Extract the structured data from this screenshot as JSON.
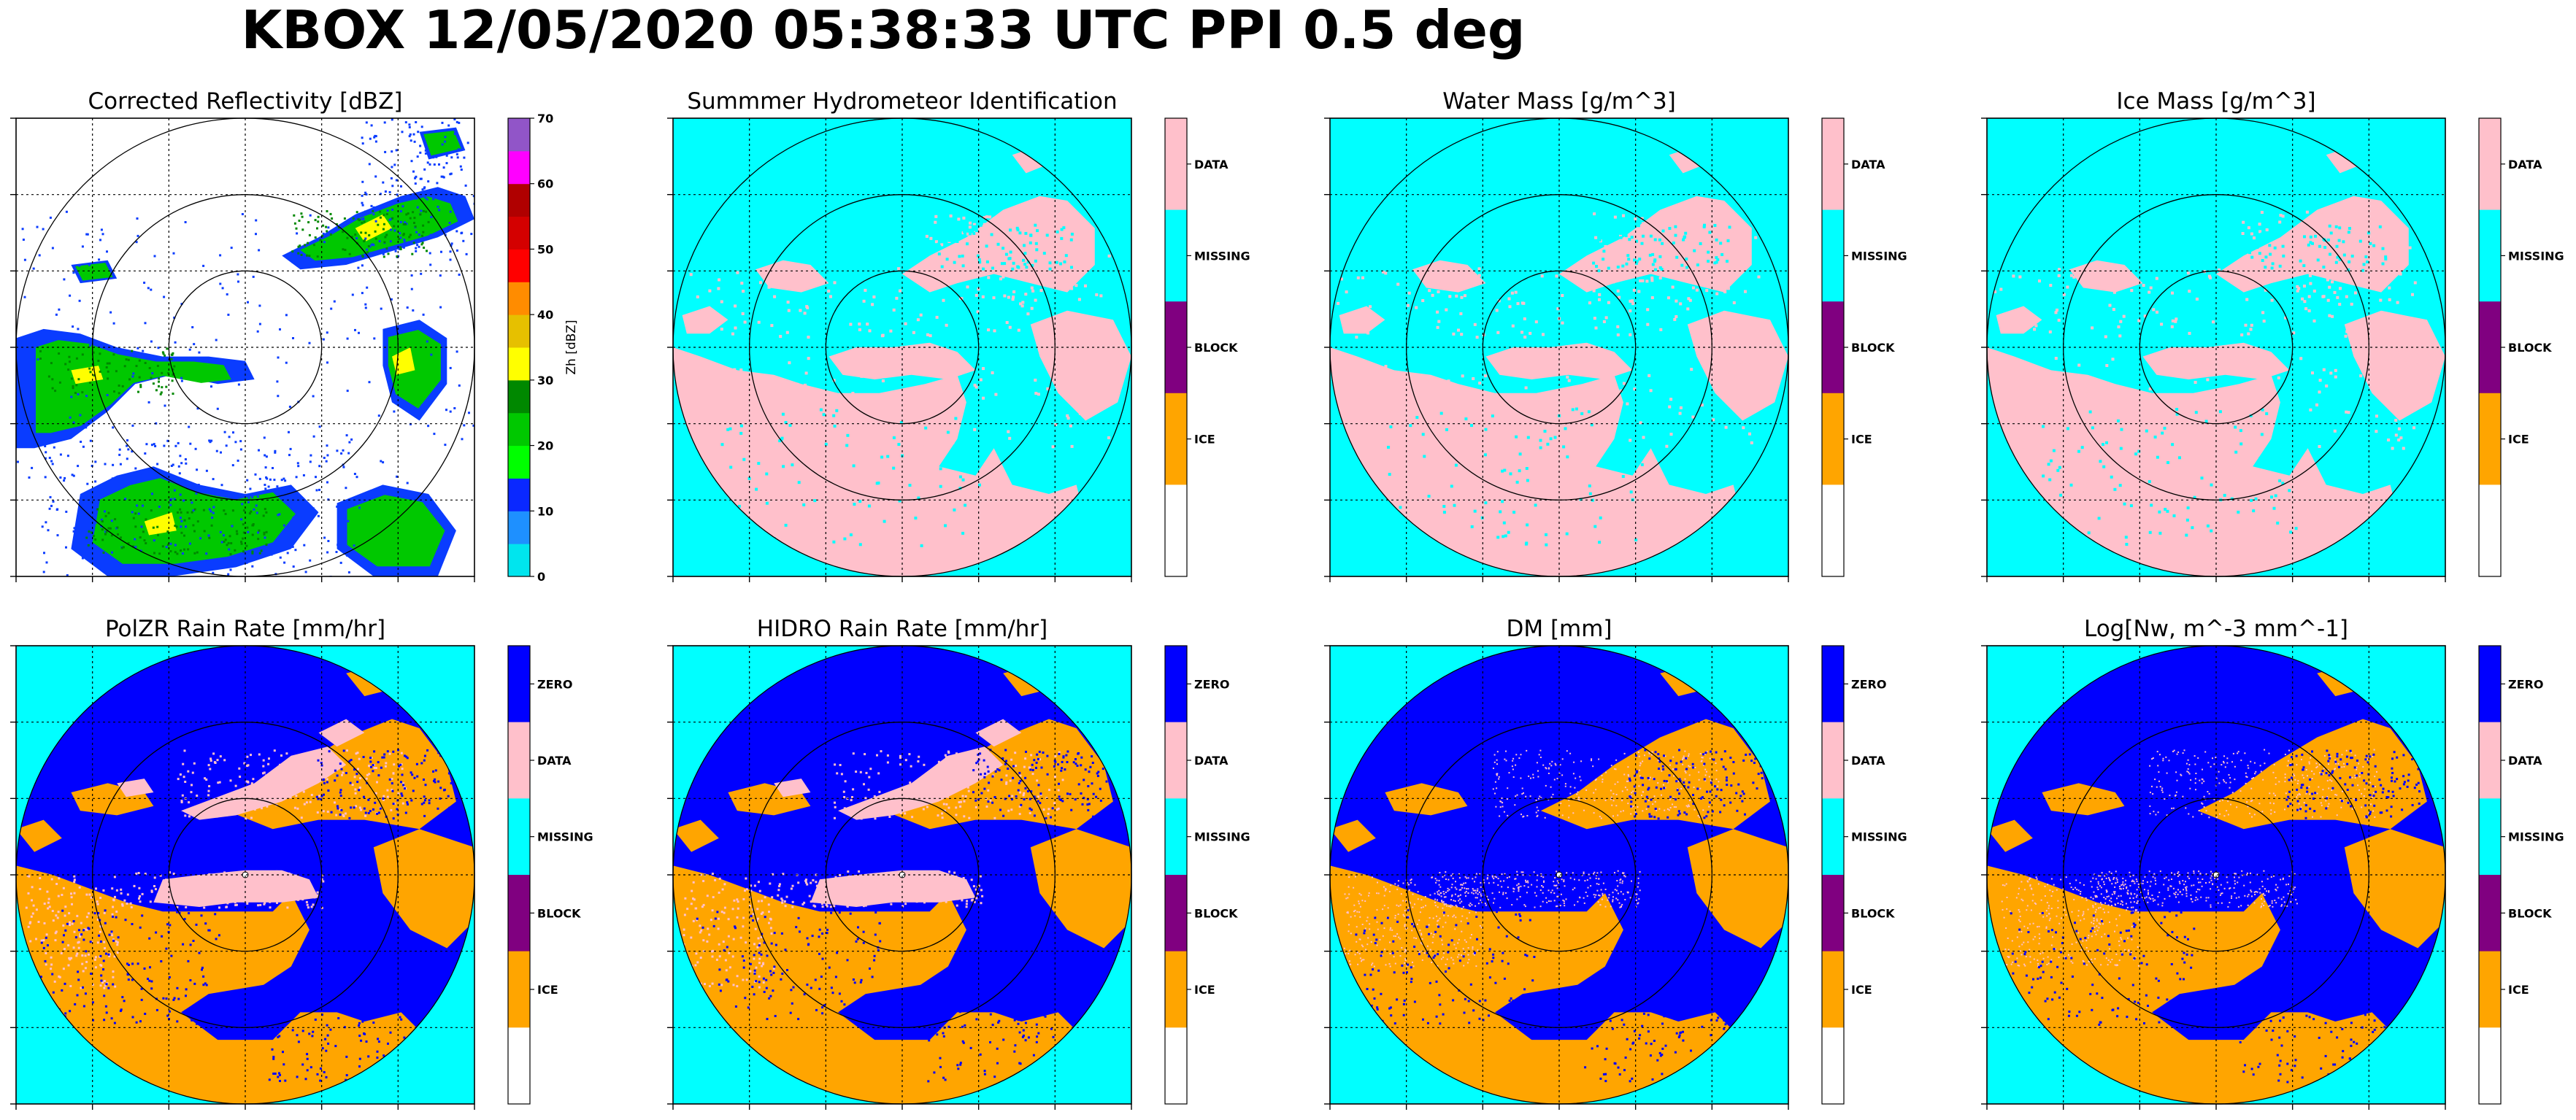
{
  "figure": {
    "title": "KBOX 12/05/2020 05:38:33 UTC PPI 0.5 deg"
  },
  "colors": {
    "cyan": "#00ffff",
    "pink": "#ffc0cb",
    "blue": "#0000ff",
    "purple": "#800080",
    "orange": "#ffa500",
    "white": "#ffffff",
    "refl_green": "#00c800",
    "refl_blue": "#0a3cff"
  },
  "chart_data": [
    {
      "type": "heatmap",
      "title": "Corrected Reflectivity [dBZ]",
      "field": "reflectivity",
      "colorbar": {
        "kind": "continuous",
        "label": "Zh [dBZ]",
        "ticks": [
          "0",
          "10",
          "20",
          "30",
          "40",
          "50",
          "60",
          "70"
        ],
        "range": [
          0,
          70
        ],
        "colors": [
          "#00e5ee",
          "#1e90ff",
          "#0a28ff",
          "#00ff00",
          "#00c800",
          "#008800",
          "#ffff00",
          "#e6c000",
          "#ff8c00",
          "#ff0000",
          "#d40000",
          "#b00000",
          "#ff00ff",
          "#9155c8"
        ]
      },
      "range_rings": 3,
      "grid": true
    },
    {
      "type": "heatmap",
      "title": "Summmer Hydrometeor Identification",
      "field": "classes_a",
      "colorbar": {
        "kind": "categorical",
        "labels": [
          "DATA",
          "MISSING",
          "BLOCK",
          "ICE",
          ""
        ],
        "colors": [
          "#ffc0cb",
          "#00ffff",
          "#800080",
          "#ffa500",
          "#ffffff"
        ]
      },
      "range_rings": 3,
      "grid": true
    },
    {
      "type": "heatmap",
      "title": "Water Mass [g/m^3]",
      "field": "classes_a",
      "colorbar": {
        "kind": "categorical",
        "labels": [
          "DATA",
          "MISSING",
          "BLOCK",
          "ICE",
          ""
        ],
        "colors": [
          "#ffc0cb",
          "#00ffff",
          "#800080",
          "#ffa500",
          "#ffffff"
        ]
      },
      "range_rings": 3,
      "grid": true
    },
    {
      "type": "heatmap",
      "title": "Ice Mass [g/m^3]",
      "field": "classes_a",
      "colorbar": {
        "kind": "categorical",
        "labels": [
          "DATA",
          "MISSING",
          "BLOCK",
          "ICE",
          ""
        ],
        "colors": [
          "#ffc0cb",
          "#00ffff",
          "#800080",
          "#ffa500",
          "#ffffff"
        ]
      },
      "range_rings": 3,
      "grid": true
    },
    {
      "type": "heatmap",
      "title": "PolZR Rain Rate [mm/hr]",
      "field": "rain",
      "colorbar": {
        "kind": "categorical",
        "labels": [
          "ZERO",
          "DATA",
          "MISSING",
          "BLOCK",
          "ICE",
          ""
        ],
        "colors": [
          "#0000ff",
          "#ffc0cb",
          "#00ffff",
          "#800080",
          "#ffa500",
          "#ffffff"
        ]
      },
      "range_rings": 3,
      "grid": true
    },
    {
      "type": "heatmap",
      "title": "HIDRO Rain Rate [mm/hr]",
      "field": "rain",
      "colorbar": {
        "kind": "categorical",
        "labels": [
          "ZERO",
          "DATA",
          "MISSING",
          "BLOCK",
          "ICE",
          ""
        ],
        "colors": [
          "#0000ff",
          "#ffc0cb",
          "#00ffff",
          "#800080",
          "#ffa500",
          "#ffffff"
        ]
      },
      "range_rings": 3,
      "grid": true
    },
    {
      "type": "heatmap",
      "title": "DM [mm]",
      "field": "rain_sparse",
      "colorbar": {
        "kind": "categorical",
        "labels": [
          "ZERO",
          "DATA",
          "MISSING",
          "BLOCK",
          "ICE",
          ""
        ],
        "colors": [
          "#0000ff",
          "#ffc0cb",
          "#00ffff",
          "#800080",
          "#ffa500",
          "#ffffff"
        ]
      },
      "range_rings": 3,
      "grid": true
    },
    {
      "type": "heatmap",
      "title": "Log[Nw, m^-3 mm^-1]",
      "field": "rain_sparse",
      "colorbar": {
        "kind": "categorical",
        "labels": [
          "ZERO",
          "DATA",
          "MISSING",
          "BLOCK",
          "ICE",
          ""
        ],
        "colors": [
          "#0000ff",
          "#ffc0cb",
          "#00ffff",
          "#800080",
          "#ffa500",
          "#ffffff"
        ]
      },
      "range_rings": 3,
      "grid": true
    }
  ]
}
